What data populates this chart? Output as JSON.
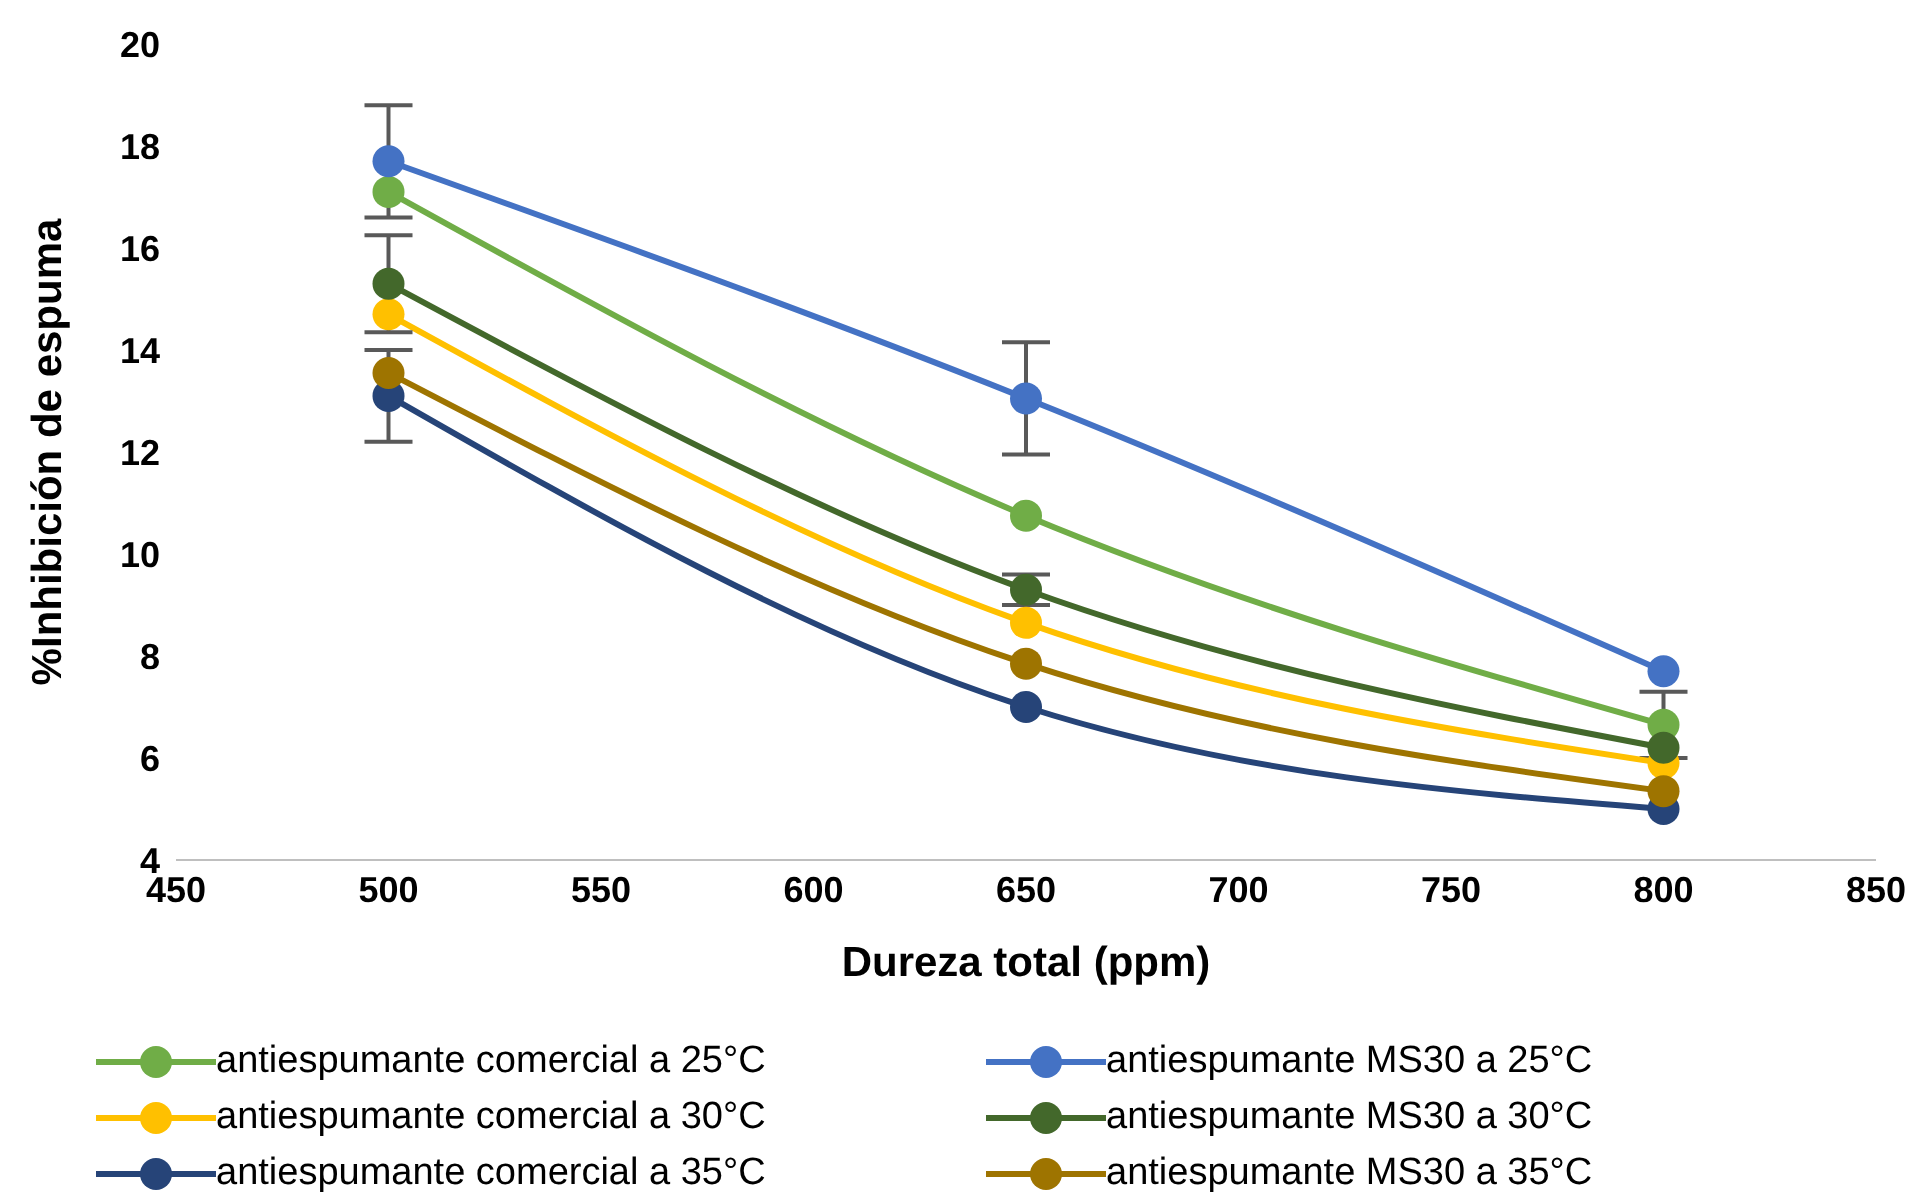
{
  "chart_data": {
    "type": "line",
    "xlabel": "Dureza total (ppm)",
    "ylabel": "%Inhibición de espuma",
    "x": [
      500,
      650,
      800
    ],
    "series": [
      {
        "name": "antiespumante comercial a 25°C",
        "color": "#70ad47",
        "values": [
          17.1,
          10.75,
          6.65
        ],
        "errors": [
          null,
          null,
          0.65
        ]
      },
      {
        "name": "antiespumante MS30 a 25°C",
        "color": "#4472c4",
        "values": [
          17.7,
          13.05,
          7.7
        ],
        "errors": [
          1.1,
          1.1,
          null
        ]
      },
      {
        "name": "antiespumante comercial a 30°C",
        "color": "#ffc000",
        "values": [
          14.7,
          8.65,
          5.9
        ]
      },
      {
        "name": "antiespumante MS30 a 30°C",
        "color": "#43682b",
        "values": [
          15.3,
          9.3,
          6.2
        ],
        "errors": [
          0.95,
          0.3,
          null
        ]
      },
      {
        "name": "antiespumante comercial a 35°C",
        "color": "#264478",
        "values": [
          13.1,
          7.0,
          5.0
        ],
        "errors": [
          0.9,
          null,
          null
        ]
      },
      {
        "name": "antiespumante MS30 a 35°C",
        "color": "#9e7400",
        "values": [
          13.55,
          7.85,
          5.35
        ]
      }
    ],
    "xlim": [
      450,
      850
    ],
    "xticks": [
      450,
      500,
      550,
      600,
      650,
      700,
      750,
      800,
      850
    ],
    "ylim": [
      4,
      20
    ],
    "yticks": [
      4,
      6,
      8,
      10,
      12,
      14,
      16,
      18,
      20
    ],
    "grid": false,
    "legend": "bottom",
    "marker": "circle",
    "line_style": "solid"
  }
}
